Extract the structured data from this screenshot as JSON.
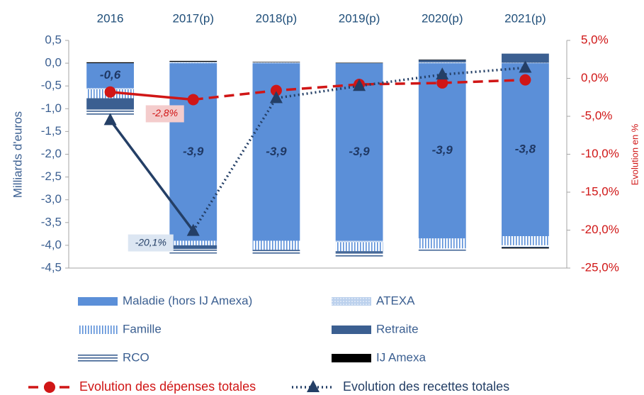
{
  "chart_data": {
    "type": "bar",
    "categories": [
      "2016",
      "2017(p)",
      "2018(p)",
      "2019(p)",
      "2020(p)",
      "2021(p)"
    ],
    "stacked": true,
    "ylabel": "Milliards d'euros",
    "y2label": "Evolution en %",
    "ylim": [
      -4.5,
      0.5
    ],
    "yticks": [
      {
        "value": 0.5,
        "label": "0,5"
      },
      {
        "value": 0,
        "label": "0,0"
      },
      {
        "value": -0.5,
        "label": "-0,5"
      },
      {
        "value": -1,
        "label": "-1,0"
      },
      {
        "value": -1.5,
        "label": "-1,5"
      },
      {
        "value": -2,
        "label": "-2,0"
      },
      {
        "value": -2.5,
        "label": "-2,5"
      },
      {
        "value": -3,
        "label": "-3,0"
      },
      {
        "value": -3.5,
        "label": "-3,5"
      },
      {
        "value": -4,
        "label": "-4,0"
      },
      {
        "value": -4.5,
        "label": "-4,5"
      }
    ],
    "y2lim": [
      -25,
      5
    ],
    "y2ticks": [
      {
        "value": 5,
        "label": "5,0%"
      },
      {
        "value": 0,
        "label": "0,0%"
      },
      {
        "value": -5,
        "label": "-5,0%"
      },
      {
        "value": -10,
        "label": "-10,0%"
      },
      {
        "value": -15,
        "label": "-15,0%"
      },
      {
        "value": -20,
        "label": "-20,0%"
      },
      {
        "value": -25,
        "label": "-25,0%"
      }
    ],
    "series": [
      {
        "name": "Maladie (hors IJ Amexa)",
        "color": "#5b8fd8",
        "pattern": "solid",
        "values": [
          -0.55,
          -3.9,
          -3.9,
          -3.9,
          -3.85,
          -3.8
        ],
        "value_labels": [
          "-0,6",
          "-3,9",
          "-3,9",
          "-3,9",
          "-3,9",
          "-3,8"
        ]
      },
      {
        "name": "ATEXA",
        "color": "#7aa3dc",
        "pattern": "dots",
        "values": [
          -0.02,
          0.03,
          0.02,
          -0.03,
          0.02,
          0.01
        ]
      },
      {
        "name": "Famille",
        "color": "#5b8fd8",
        "pattern": "vertical",
        "values": [
          -0.2,
          -0.1,
          -0.2,
          -0.2,
          -0.22,
          -0.2
        ]
      },
      {
        "name": "Retraite",
        "color": "#3b5f91",
        "pattern": "solid",
        "values": [
          -0.25,
          -0.08,
          -0.03,
          -0.03,
          0.05,
          0.2
        ]
      },
      {
        "name": "RCO",
        "color": "#3b5f91",
        "pattern": "horizontal",
        "values": [
          -0.12,
          -0.1,
          -0.08,
          -0.1,
          -0.05,
          -0.05
        ]
      },
      {
        "name": "IJ Amexa",
        "color": "#000000",
        "pattern": "solid",
        "values": [
          0.02,
          0.02,
          0.01,
          0.01,
          0.01,
          -0.02
        ]
      },
      {
        "name": "Evolution des dépenses totales",
        "color": "#d01616",
        "type": "line",
        "axis": "y2",
        "marker": "circle",
        "dash": "dashed",
        "values": [
          -1.8,
          -2.8,
          -1.6,
          -0.8,
          -0.6,
          -0.2
        ],
        "value_labels": [
          null,
          "-2,8%",
          null,
          null,
          null,
          null
        ]
      },
      {
        "name": "Evolution des recettes totales",
        "color": "#243f66",
        "type": "line",
        "axis": "y2",
        "marker": "triangle",
        "dash": "dotted",
        "values": [
          -5.5,
          -20.1,
          -2.6,
          -1.0,
          0.5,
          1.4
        ],
        "value_labels": [
          null,
          "-20,1%",
          null,
          null,
          null,
          null
        ]
      }
    ]
  }
}
